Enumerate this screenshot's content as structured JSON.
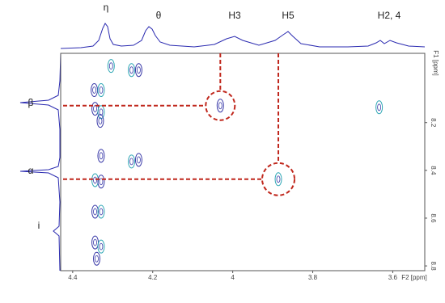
{
  "labels": {
    "eta": "η",
    "theta": "θ",
    "h3": "H3",
    "h5": "H5",
    "h24": "H2, 4",
    "beta": "β",
    "alpha": "α",
    "i": "i"
  },
  "chart_data": {
    "type": "contour",
    "x_label": "F2 [ppm]",
    "y_label": "F1 [ppm]",
    "xlim": [
      4.43,
      3.52
    ],
    "ylim": [
      7.91,
      8.82
    ],
    "xticks": [
      4.4,
      4.2,
      4.0,
      3.8,
      3.6
    ],
    "yticks": [
      8.2,
      8.4,
      8.6,
      8.8
    ],
    "color": "#3a3aa8",
    "peaks": {
      "x": [
        4.346,
        4.329,
        4.344,
        4.329,
        4.331,
        4.253,
        4.235,
        4.304,
        4.031,
        3.634,
        4.329,
        4.253,
        4.235,
        4.344,
        4.329,
        3.886,
        4.344,
        4.329,
        4.344,
        4.329,
        4.34
      ],
      "y": [
        8.064,
        8.064,
        8.142,
        8.156,
        8.193,
        7.98,
        7.98,
        7.963,
        8.129,
        8.136,
        8.339,
        8.363,
        8.356,
        8.441,
        8.447,
        8.437,
        8.573,
        8.573,
        8.702,
        8.719,
        8.77
      ]
    }
  }
}
